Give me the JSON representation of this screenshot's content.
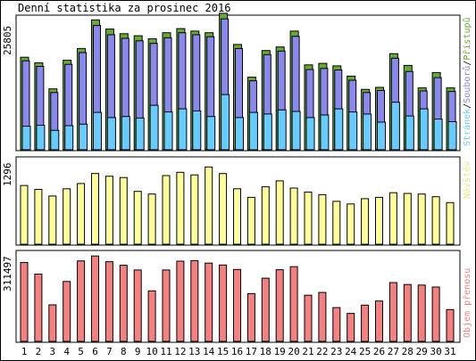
{
  "title": "Denní statistika za prosinec 2016",
  "colors": {
    "hits": "#66aa33",
    "files": "#8888ee",
    "pages": "#66ccff",
    "visits": "#ffff99",
    "kbytes": "#f58080",
    "weekend": "#33aa00",
    "text": "#000000"
  },
  "legend": {
    "hits": "Přístupů",
    "files": "Souborů",
    "pages": "Stránek",
    "sep": "/",
    "visits": "Návštěv",
    "kbytes": "Objem přenosu"
  },
  "chart_data": [
    {
      "type": "bar",
      "title": "Denní statistika za prosinec 2016",
      "categories": [
        "1",
        "2",
        "3",
        "4",
        "5",
        "6",
        "7",
        "8",
        "9",
        "10",
        "11",
        "12",
        "13",
        "14",
        "15",
        "16",
        "17",
        "18",
        "19",
        "20",
        "21",
        "22",
        "23",
        "24",
        "25",
        "26",
        "27",
        "28",
        "29",
        "30",
        "31"
      ],
      "weekend_days": [
        "3",
        "4",
        "10",
        "11",
        "17",
        "18",
        "24",
        "25",
        "31"
      ],
      "ylabel": "25805",
      "ymax": 25805,
      "series": [
        {
          "name": "Přístupů",
          "values": [
            18100,
            17000,
            11900,
            17500,
            19800,
            25400,
            23600,
            22700,
            22300,
            21700,
            22900,
            23700,
            23200,
            22900,
            26700,
            20600,
            14200,
            19400,
            20100,
            23200,
            16600,
            16900,
            16400,
            14400,
            11800,
            12200,
            18800,
            16500,
            12100,
            15100,
            12100
          ]
        },
        {
          "name": "Souborů",
          "values": [
            17400,
            16300,
            11200,
            16700,
            19000,
            24300,
            22500,
            21800,
            21300,
            20800,
            21900,
            22900,
            22500,
            22100,
            25600,
            19800,
            13500,
            18600,
            19300,
            22200,
            15700,
            15900,
            15600,
            13600,
            11200,
            11600,
            17900,
            15300,
            11500,
            14100,
            11400
          ]
        },
        {
          "name": "Stránek",
          "values": [
            4600,
            4800,
            3800,
            4700,
            5000,
            7300,
            6300,
            6500,
            6200,
            8700,
            7400,
            8000,
            7600,
            6500,
            10800,
            6300,
            7300,
            7000,
            7800,
            7500,
            6300,
            6800,
            8000,
            7400,
            7000,
            5400,
            9300,
            6600,
            8000,
            6000,
            5500
          ]
        }
      ]
    },
    {
      "type": "bar",
      "categories": [
        "1",
        "2",
        "3",
        "4",
        "5",
        "6",
        "7",
        "8",
        "9",
        "10",
        "11",
        "12",
        "13",
        "14",
        "15",
        "16",
        "17",
        "18",
        "19",
        "20",
        "21",
        "22",
        "23",
        "24",
        "25",
        "26",
        "27",
        "28",
        "29",
        "30",
        "31"
      ],
      "ylabel": "1296",
      "ymax": 1296,
      "series": [
        {
          "name": "Návštěv",
          "values": [
            890,
            830,
            730,
            840,
            920,
            1070,
            1030,
            1010,
            800,
            760,
            1040,
            1090,
            1050,
            1170,
            1070,
            840,
            710,
            870,
            960,
            850,
            790,
            750,
            650,
            610,
            690,
            710,
            780,
            770,
            760,
            720,
            630
          ]
        }
      ]
    },
    {
      "type": "bar",
      "categories": [
        "1",
        "2",
        "3",
        "4",
        "5",
        "6",
        "7",
        "8",
        "9",
        "10",
        "11",
        "12",
        "13",
        "14",
        "15",
        "16",
        "17",
        "18",
        "19",
        "20",
        "21",
        "22",
        "23",
        "24",
        "25",
        "26",
        "27",
        "28",
        "29",
        "30",
        "31"
      ],
      "ylabel": "311497",
      "ymax": 311497,
      "series": [
        {
          "name": "Objem přenosu",
          "values": [
            287000,
            245000,
            133000,
            218000,
            293000,
            311000,
            290000,
            277000,
            260000,
            184000,
            260000,
            292000,
            294000,
            285000,
            278000,
            262000,
            174000,
            230000,
            261000,
            272000,
            168000,
            178000,
            123000,
            102000,
            132000,
            147000,
            214000,
            207000,
            205000,
            198000,
            116000
          ]
        }
      ]
    }
  ]
}
